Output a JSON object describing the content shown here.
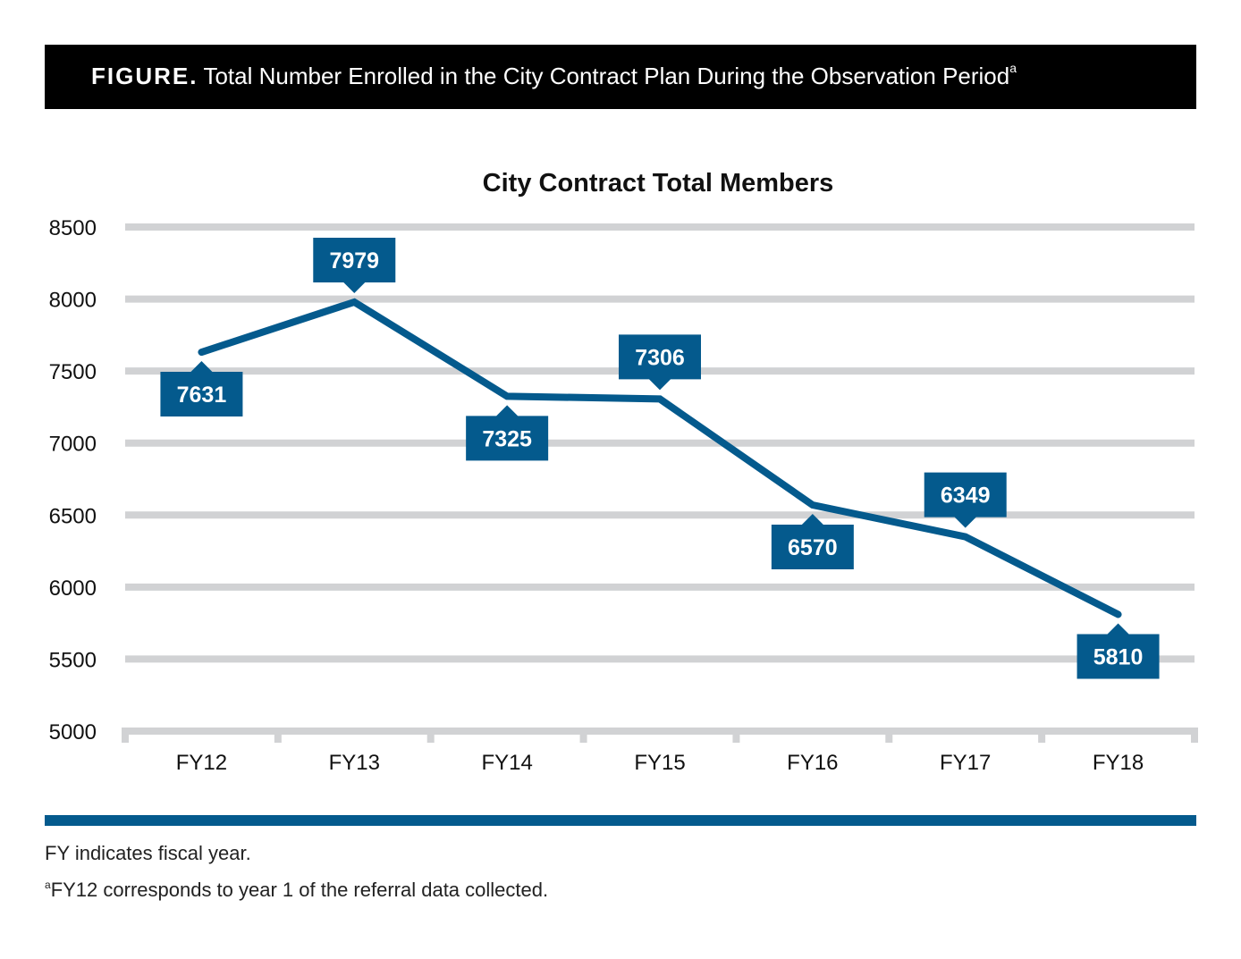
{
  "header": {
    "label": "FIGURE.",
    "title": "Total Number Enrolled in the City Contract Plan During the Observation Period",
    "superscript": "a"
  },
  "chart_data": {
    "type": "line",
    "title": "City Contract Total Members",
    "xlabel": "",
    "ylabel": "",
    "categories": [
      "FY12",
      "FY13",
      "FY14",
      "FY15",
      "FY16",
      "FY17",
      "FY18"
    ],
    "series": [
      {
        "name": "City Contract Total Members",
        "values": [
          7631,
          7979,
          7325,
          7306,
          6570,
          6349,
          5810
        ]
      }
    ],
    "label_side": [
      "below",
      "above",
      "below",
      "above",
      "below",
      "above",
      "below"
    ],
    "ylim": [
      5000,
      8500
    ],
    "yticks": [
      5000,
      5500,
      6000,
      6500,
      7000,
      7500,
      8000,
      8500
    ],
    "grid": true,
    "legend": "none",
    "colors": {
      "line": "#045a8d",
      "grid": "#d1d2d4",
      "label_bg": "#045a8d",
      "label_text": "#ffffff"
    }
  },
  "footnotes": {
    "note1": "FY indicates fiscal year.",
    "note2_sup": "a",
    "note2": "FY12 corresponds to year 1 of the referral data collected."
  }
}
